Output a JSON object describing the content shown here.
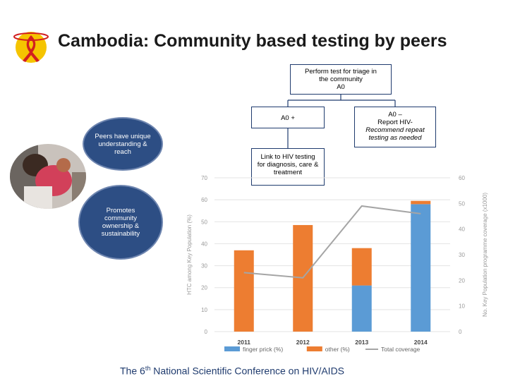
{
  "slide": {
    "title": "Cambodia: Community based testing by peers",
    "footer_prefix": "The 6",
    "footer_sup": "th",
    "footer_suffix": " National Scientific Conference on HIV/AIDS"
  },
  "flow": {
    "top": [
      "Perform test for triage in",
      "the community",
      "A0"
    ],
    "positive": "A0 +",
    "negative": [
      "A0 –",
      "Report HIV-"
    ],
    "negative_italic": [
      "Recommend repeat",
      "testing as needed"
    ],
    "link": [
      "Link to HIV testing",
      "for diagnosis, care &",
      "treatment"
    ]
  },
  "ovals": {
    "peers": [
      "Peers have unique",
      "understanding &",
      "reach"
    ],
    "promotes": [
      "Promotes",
      "community",
      "ownership &",
      "sustainability"
    ]
  },
  "chart_data": {
    "type": "bar",
    "categories": [
      "2011",
      "2012",
      "2013",
      "2014"
    ],
    "series": [
      {
        "name": "finger prick (%)",
        "type": "stacked-bar",
        "axis": "left",
        "color": "#5b9bd5",
        "values": [
          0,
          0,
          21,
          58
        ]
      },
      {
        "name": "other (%)",
        "type": "stacked-bar",
        "axis": "left",
        "color": "#ed7d31",
        "values": [
          37,
          48.5,
          17,
          1.5
        ]
      },
      {
        "name": "Total coverage",
        "type": "line",
        "axis": "right",
        "color": "#a5a5a5",
        "values": [
          23,
          21,
          49,
          46
        ]
      }
    ],
    "ylabel": "HTC among Key Population (%)",
    "y2label": "No. Key Population programme coverage (x1000)",
    "ylim": [
      0,
      70
    ],
    "y2lim": [
      0,
      60
    ],
    "yticks": [
      "0",
      "10",
      "20",
      "30",
      "40",
      "50",
      "60",
      "70"
    ],
    "y2ticks": [
      "0",
      "10",
      "20",
      "30",
      "40",
      "50",
      "60"
    ],
    "legend": "bottom"
  }
}
